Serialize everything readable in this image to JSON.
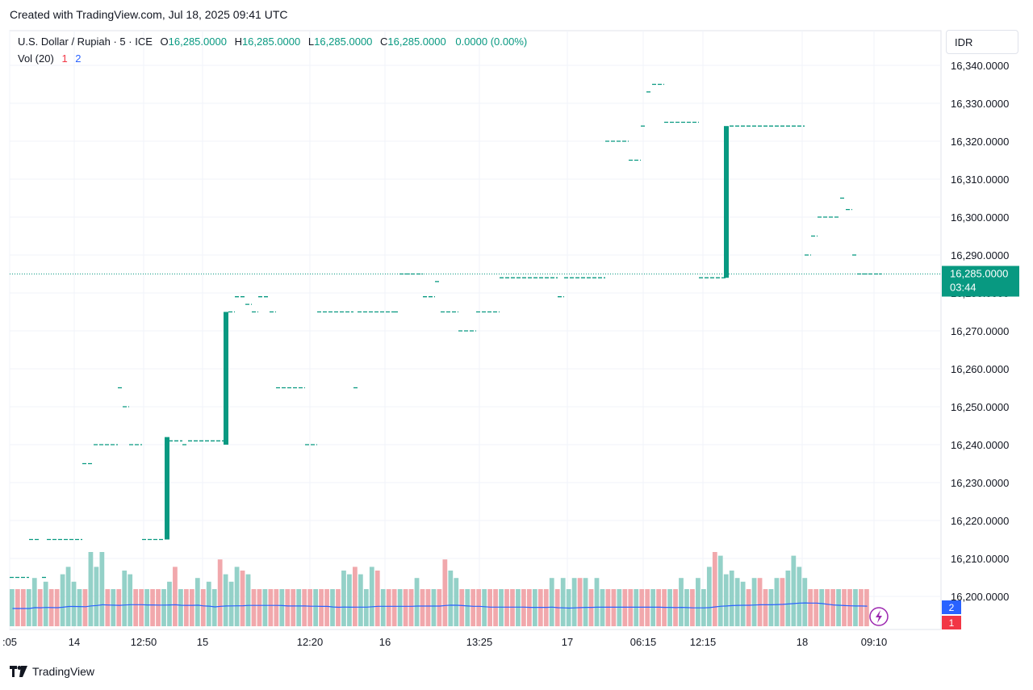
{
  "header": {
    "caption": "Created with TradingView.com, Jul 18, 2025 09:41 UTC"
  },
  "legend": {
    "symbol": "U.S. Dollar / Rupiah · 5 · ICE",
    "o_label": "O",
    "o_value": "16,285.0000",
    "h_label": "H",
    "h_value": "16,285.0000",
    "l_label": "L",
    "l_value": "16,285.0000",
    "c_label": "C",
    "c_value": "16,285.0000",
    "change": "0.0000 (0.00%)",
    "vol_label": "Vol (20)",
    "vol_val1": "1",
    "vol_val2": "2"
  },
  "currency_button": "IDR",
  "price_tag": {
    "price": "16,285.0000",
    "countdown": "03:44"
  },
  "volume_tags": {
    "upper": "2",
    "lower": "1"
  },
  "footer": {
    "brand": "TradingView"
  },
  "colors": {
    "up": "#089981",
    "down": "#f23645",
    "vol_up": "#94d1c8",
    "vol_down": "#f1a8ac",
    "ma": "#2962ff",
    "grid": "#f0f3fa"
  },
  "chart_data": {
    "type": "candlestick",
    "symbol": "USD/IDR",
    "interval": "5",
    "y_ticks": [
      "16,200.0000",
      "16,210.0000",
      "16,220.0000",
      "16,230.0000",
      "16,240.0000",
      "16,250.0000",
      "16,260.0000",
      "16,270.0000",
      "16,280.0000",
      "16,290.0000",
      "16,300.0000",
      "16,310.0000",
      "16,320.0000",
      "16,330.0000",
      "16,340.0000"
    ],
    "ylim": [
      16196,
      16345
    ],
    "x_ticks": [
      ":05",
      "14",
      "12:50",
      "15",
      "12:20",
      "16",
      "13:25",
      "17",
      "06:15",
      "12:15",
      "18",
      "09:10"
    ],
    "last_price": 16285,
    "price_levels": [
      {
        "value": 16205,
        "segments": [
          [
            12,
            36
          ],
          [
            52,
            58
          ]
        ]
      },
      {
        "value": 16215,
        "segments": [
          [
            36,
            50
          ],
          [
            58,
            102
          ],
          [
            176,
            204
          ]
        ]
      },
      {
        "value": 16235,
        "segments": [
          [
            102,
            116
          ]
        ]
      },
      {
        "value": 16240,
        "segments": [
          [
            116,
            146
          ],
          [
            160,
            176
          ],
          [
            226,
            233
          ],
          [
            378,
            393
          ]
        ]
      },
      {
        "value": 16241,
        "segments": [
          [
            209,
            226
          ],
          [
            233,
            278
          ]
        ]
      },
      {
        "value": 16250,
        "segments": [
          [
            152,
            160
          ]
        ]
      },
      {
        "value": 16255,
        "segments": [
          [
            146,
            152
          ],
          [
            342,
            378
          ],
          [
            438,
            445
          ]
        ]
      },
      {
        "value": 16270,
        "segments": [
          [
            568,
            590
          ]
        ]
      },
      {
        "value": 16275,
        "segments": [
          [
            283,
            291
          ],
          [
            312,
            320
          ],
          [
            334,
            342
          ],
          [
            393,
            438
          ],
          [
            443,
            488
          ],
          [
            488,
            495
          ],
          [
            546,
            568
          ],
          [
            590,
            619
          ]
        ]
      },
      {
        "value": 16277,
        "segments": [
          [
            304,
            312
          ]
        ]
      },
      {
        "value": 16279,
        "segments": [
          [
            291,
            304
          ],
          [
            320,
            334
          ],
          [
            524,
            539
          ],
          [
            691,
            699
          ]
        ]
      },
      {
        "value": 16284,
        "segments": [
          [
            619,
            691
          ],
          [
            699,
            750
          ],
          [
            866,
            899
          ]
        ]
      },
      {
        "value": 16285,
        "segments": [
          [
            495,
            524
          ],
          [
            1062,
            1092
          ]
        ]
      },
      {
        "value": 16283,
        "segments": [
          [
            539,
            546
          ]
        ]
      },
      {
        "value": 16290,
        "segments": [
          [
            997,
            1005
          ],
          [
            1056,
            1062
          ]
        ]
      },
      {
        "value": 16295,
        "segments": [
          [
            1005,
            1013
          ]
        ]
      },
      {
        "value": 16300,
        "segments": [
          [
            1013,
            1041
          ]
        ]
      },
      {
        "value": 16302,
        "segments": [
          [
            1048,
            1056
          ]
        ]
      },
      {
        "value": 16305,
        "segments": [
          [
            1041,
            1048
          ]
        ]
      },
      {
        "value": 16315,
        "segments": [
          [
            779,
            794
          ]
        ]
      },
      {
        "value": 16320,
        "segments": [
          [
            750,
            779
          ]
        ]
      },
      {
        "value": 16324,
        "segments": [
          [
            794,
            801
          ],
          [
            904,
            997
          ]
        ]
      },
      {
        "value": 16325,
        "segments": [
          [
            823,
            866
          ]
        ]
      },
      {
        "value": 16333,
        "segments": [
          [
            801,
            808
          ]
        ]
      },
      {
        "value": 16335,
        "segments": [
          [
            808,
            823
          ]
        ]
      }
    ],
    "big_candles": [
      {
        "open": 16215,
        "close": 16242
      },
      {
        "open": 16240,
        "close": 16275
      },
      {
        "open": 16284,
        "close": 16324
      }
    ],
    "volume": {
      "ylim": [
        0,
        2
      ],
      "bars": [
        1,
        1,
        1,
        1,
        1.3,
        1,
        1.2,
        1,
        1,
        1.4,
        1.6,
        1.2,
        1,
        1,
        2,
        1.6,
        2,
        1,
        1,
        1,
        1.5,
        1.4,
        1,
        1,
        1,
        1,
        1,
        1,
        1.2,
        1.6,
        1,
        1,
        1,
        1.3,
        1,
        1.2,
        1,
        1.8,
        1.4,
        1.2,
        1.6,
        1.5,
        1.4,
        1,
        1,
        1,
        1,
        1,
        1,
        1,
        1,
        1,
        1,
        1,
        1,
        1,
        1,
        1,
        1,
        1.5,
        1.4,
        1.6,
        1.4,
        1,
        1.6,
        1.5,
        1,
        1,
        1,
        1,
        1,
        1,
        1.3,
        1,
        1,
        1,
        1,
        1.8,
        1.5,
        1.3,
        1,
        1,
        1,
        1,
        1,
        1,
        1,
        1,
        1,
        1,
        1,
        1,
        1,
        1,
        1,
        1,
        1.3,
        1,
        1.3,
        1,
        1.3,
        1.3,
        1.3,
        1,
        1.3,
        1,
        1,
        1,
        1,
        1,
        1,
        1,
        1,
        1,
        1,
        1,
        1,
        1,
        1,
        1.3,
        1,
        1,
        1.3,
        1,
        1.6,
        2,
        1.9,
        1.4,
        1.5,
        1.3,
        1.2,
        1,
        1.3,
        1.3,
        1,
        1,
        1.3,
        1.3,
        1.5,
        1.9,
        1.6,
        1.3,
        1,
        1,
        1,
        1,
        1,
        1,
        1,
        1,
        1,
        1,
        1
      ],
      "ma_label": "Vol (20)"
    }
  }
}
